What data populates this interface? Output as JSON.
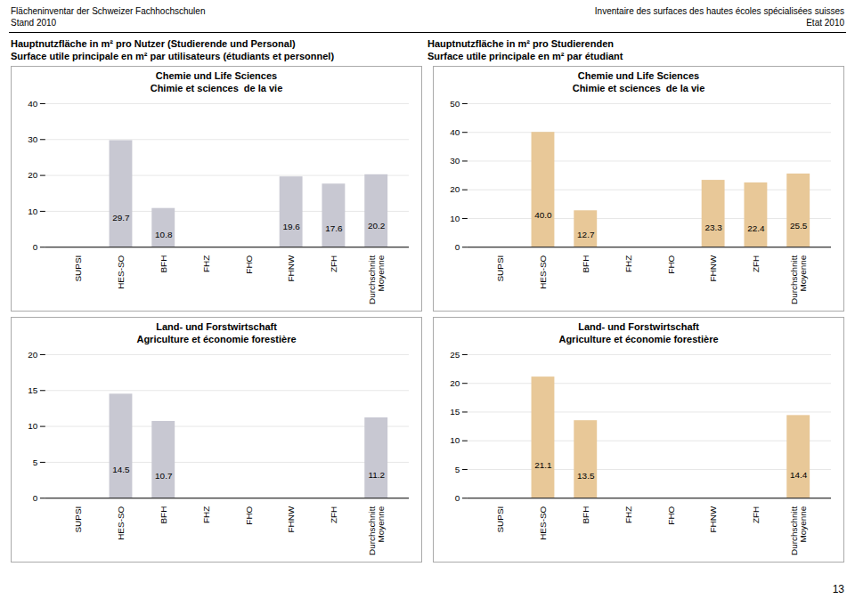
{
  "annotations": [
    "Flächeninventar der Schweizer Fachhochschulen",
    "Stand 2010",
    "Inventaire des surfaces des hautes écoles spécialisées suisses",
    "Etat 2010",
    "Hauptnutzfläche in m² pro Nutzer (Studierende und Personal)",
    "Surface utile principale en m² par utilisateurs (étudiants et personnel)",
    "Hauptnutzfläche in m² pro Studierenden",
    "Surface utile principale en m² par étudiant",
    "13"
  ],
  "chart_data": [
    {
      "type": "bar",
      "title": "Chemie und Life Sciences\nChimie et sciences  de la vie",
      "categories": [
        "SUPSI",
        "HES-SO",
        "BFH",
        "FHZ",
        "FHO",
        "FHNW",
        "ZFH",
        "Durchschnitt\nMoyenne"
      ],
      "values": [
        0,
        29.7,
        10.8,
        0,
        0,
        19.6,
        17.6,
        20.2
      ],
      "value_labels": [
        null,
        "29.7",
        "10.8",
        null,
        null,
        "19.6",
        "17.6",
        "20.2"
      ],
      "color": "#c8c8d2",
      "ylim": [
        0,
        40
      ],
      "yticks": [
        0,
        10,
        20,
        30,
        40
      ],
      "grid": true,
      "data_labels": true
    },
    {
      "type": "bar",
      "title": "Chemie und Life Sciences\nChimie et sciences  de la vie",
      "categories": [
        "SUPSI",
        "HES-SO",
        "BFH",
        "FHZ",
        "FHO",
        "FHNW",
        "ZFH",
        "Durchschnitt\nMoyenne"
      ],
      "values": [
        0,
        40.0,
        12.7,
        0,
        0,
        23.3,
        22.4,
        25.5
      ],
      "value_labels": [
        null,
        "40.0",
        "12.7",
        null,
        null,
        "23.3",
        "22.4",
        "25.5"
      ],
      "color": "#e8c898",
      "ylim": [
        0,
        50
      ],
      "yticks": [
        0,
        10,
        20,
        30,
        40,
        50
      ],
      "grid": true,
      "data_labels": true
    },
    {
      "type": "bar",
      "title": "Land- und Forstwirtschaft\nAgriculture et économie forestière",
      "categories": [
        "SUPSI",
        "HES-SO",
        "BFH",
        "FHZ",
        "FHO",
        "FHNW",
        "ZFH",
        "Durchschnitt\nMoyenne"
      ],
      "values": [
        0,
        14.5,
        10.7,
        0,
        0,
        0,
        0,
        11.2
      ],
      "value_labels": [
        null,
        "14.5",
        "10.7",
        null,
        null,
        null,
        null,
        "11.2"
      ],
      "color": "#c8c8d2",
      "ylim": [
        0,
        20
      ],
      "yticks": [
        0,
        5,
        10,
        15,
        20
      ],
      "grid": true,
      "data_labels": true
    },
    {
      "type": "bar",
      "title": "Land- und Forstwirtschaft\nAgriculture et économie forestière",
      "categories": [
        "SUPSI",
        "HES-SO",
        "BFH",
        "FHZ",
        "FHO",
        "FHNW",
        "ZFH",
        "Durchschnitt\nMoyenne"
      ],
      "values": [
        0,
        21.1,
        13.5,
        0,
        0,
        0,
        0,
        14.4
      ],
      "value_labels": [
        null,
        "21.1",
        "13.5",
        null,
        null,
        null,
        null,
        "14.4"
      ],
      "color": "#e8c898",
      "ylim": [
        0,
        25
      ],
      "yticks": [
        0,
        5,
        10,
        15,
        20,
        25
      ],
      "grid": true,
      "data_labels": true
    }
  ]
}
